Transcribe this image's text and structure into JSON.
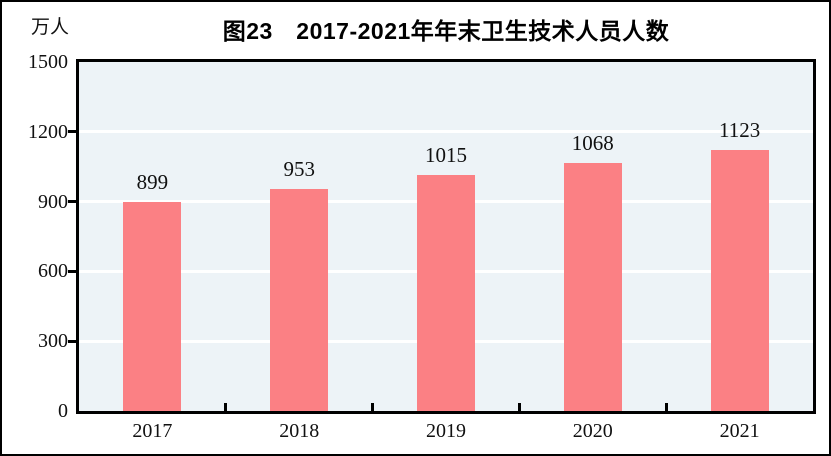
{
  "chart_data": {
    "type": "bar",
    "title": "图23　2017-2021年年末卫生技术人员人数",
    "categories": [
      "2017",
      "2018",
      "2019",
      "2020",
      "2021"
    ],
    "values": [
      899,
      953,
      1015,
      1068,
      1123
    ],
    "data_labels": [
      "899",
      "953",
      "1015",
      "1068",
      "1123"
    ],
    "xlabel": "",
    "ylabel": "万人",
    "ylim": [
      0,
      1500
    ],
    "y_ticks": [
      0,
      300,
      600,
      900,
      1200,
      1500
    ],
    "grid": true,
    "legend_position": "none",
    "bar_color": "#FB8084",
    "plot_background_color": "#EDF3F7",
    "gridline_color": "#FFFFFF",
    "axis_color": "#000000",
    "text_color": "#111111"
  }
}
